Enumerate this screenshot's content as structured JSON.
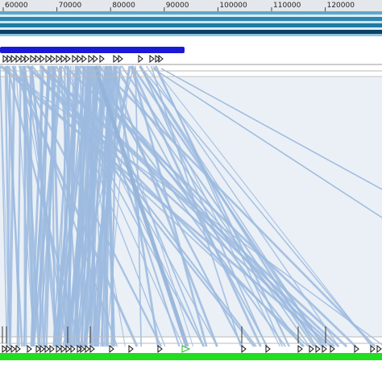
{
  "ruler": {
    "ticks": [
      "60000",
      "70000",
      "80000",
      "90000",
      "100000",
      "110000",
      "120000"
    ]
  }
}
